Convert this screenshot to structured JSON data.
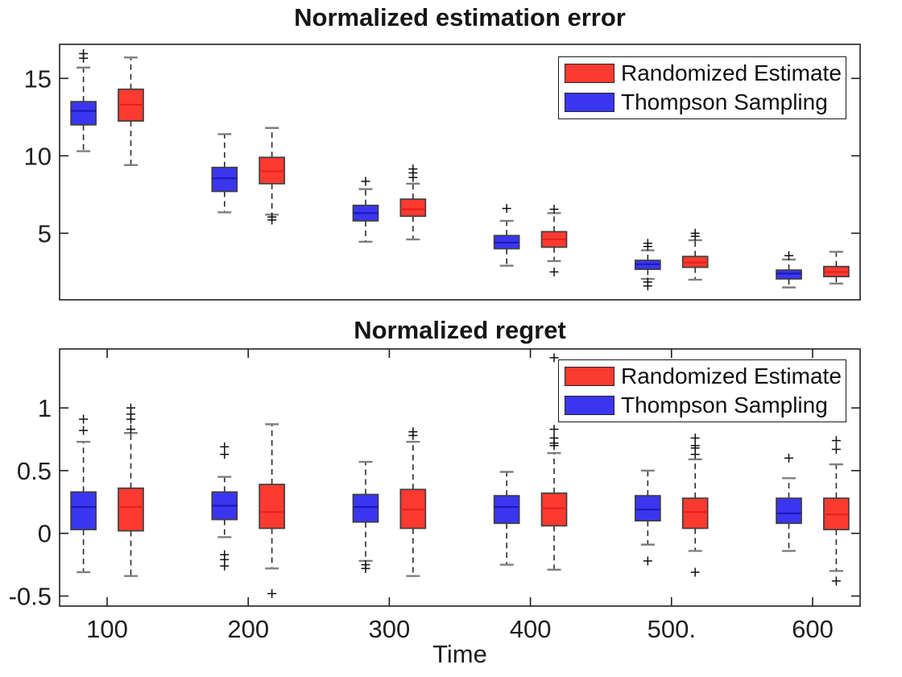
{
  "figure": {
    "background": "#ffffff",
    "xlabel": "Time"
  },
  "legend": {
    "entries": [
      {
        "label": "Randomized Estimate",
        "color_key": "red"
      },
      {
        "label": "Thompson Sampling",
        "color_key": "blue"
      }
    ],
    "position": "top-right"
  },
  "colors": {
    "red": "#fb3a30",
    "blue": "#3a36f0",
    "red_median": "#e62020",
    "blue_median": "#1b1bb4",
    "box_edge": "#3f3f3f",
    "whisker": "#2b2b2b",
    "whisker_cap": "#7f7f7f",
    "outlier": "#111111",
    "axis": "#1f1f1f"
  },
  "chart_data": [
    {
      "type": "boxplot",
      "title": "Normalized estimation error",
      "xlabel": "",
      "ylabel": "",
      "ylim": [
        0.7,
        17.2
      ],
      "yticks": [
        5,
        10,
        15
      ],
      "ytick_labels": [
        "5",
        "10",
        "15"
      ],
      "x_ticks": [
        100,
        200,
        300,
        400,
        500,
        600
      ],
      "x_tick_labels": null,
      "grid": false,
      "legend_position": "top-right",
      "series": [
        {
          "name": "Thompson Sampling",
          "color_key": "blue",
          "offset": -16.8,
          "boxes": [
            {
              "x": 100,
              "whislo": 10.3,
              "q1": 12.0,
              "med": 12.9,
              "q3": 13.5,
              "whishi": 15.7,
              "fliers": [
                16.3,
                16.6
              ]
            },
            {
              "x": 200,
              "whislo": 6.35,
              "q1": 7.7,
              "med": 8.55,
              "q3": 9.25,
              "whishi": 11.4,
              "fliers": []
            },
            {
              "x": 300,
              "whislo": 4.45,
              "q1": 5.8,
              "med": 6.3,
              "q3": 6.8,
              "whishi": 7.85,
              "fliers": [
                8.35
              ]
            },
            {
              "x": 400,
              "whislo": 2.9,
              "q1": 4.0,
              "med": 4.4,
              "q3": 4.85,
              "whishi": 5.8,
              "fliers": [
                6.6
              ]
            },
            {
              "x": 500,
              "whislo": 2.05,
              "q1": 2.67,
              "med": 3.0,
              "q3": 3.25,
              "whishi": 3.9,
              "fliers": [
                4.15,
                4.35,
                1.85,
                1.6
              ]
            },
            {
              "x": 600,
              "whislo": 1.5,
              "q1": 2.05,
              "med": 2.4,
              "q3": 2.62,
              "whishi": 3.3,
              "fliers": [
                3.55
              ]
            }
          ]
        },
        {
          "name": "Randomized Estimate",
          "color_key": "red",
          "offset": 16.8,
          "boxes": [
            {
              "x": 100,
              "whislo": 9.4,
              "q1": 12.25,
              "med": 13.3,
              "q3": 14.3,
              "whishi": 16.35,
              "fliers": []
            },
            {
              "x": 200,
              "whislo": 6.2,
              "q1": 8.2,
              "med": 9.0,
              "q3": 9.9,
              "whishi": 11.8,
              "fliers": [
                6.05,
                5.85
              ]
            },
            {
              "x": 300,
              "whislo": 4.6,
              "q1": 6.1,
              "med": 6.55,
              "q3": 7.2,
              "whishi": 8.2,
              "fliers": [
                8.6,
                8.9,
                9.15
              ]
            },
            {
              "x": 400,
              "whislo": 3.2,
              "q1": 4.1,
              "med": 4.6,
              "q3": 5.1,
              "whishi": 6.3,
              "fliers": [
                6.55,
                2.5
              ]
            },
            {
              "x": 500,
              "whislo": 2.0,
              "q1": 2.8,
              "med": 3.1,
              "q3": 3.5,
              "whishi": 4.55,
              "fliers": [
                4.8,
                5.0
              ]
            },
            {
              "x": 600,
              "whislo": 1.75,
              "q1": 2.2,
              "med": 2.5,
              "q3": 2.85,
              "whishi": 3.8,
              "fliers": []
            }
          ]
        }
      ]
    },
    {
      "type": "boxplot",
      "title": "Normalized regret",
      "xlabel": "Time",
      "ylabel": "",
      "ylim": [
        -0.58,
        1.47
      ],
      "yticks": [
        -0.5,
        0,
        0.5,
        1
      ],
      "ytick_labels": [
        "-0.5",
        "0",
        "0.5",
        "1"
      ],
      "x_ticks": [
        100,
        200,
        300,
        400,
        500,
        600
      ],
      "x_tick_labels": [
        "100",
        "200",
        "300",
        "400",
        "500.",
        "600"
      ],
      "grid": false,
      "legend_position": "top-right",
      "series": [
        {
          "name": "Thompson Sampling",
          "color_key": "blue",
          "offset": -16.8,
          "boxes": [
            {
              "x": 100,
              "whislo": -0.31,
              "q1": 0.03,
              "med": 0.21,
              "q3": 0.33,
              "whishi": 0.73,
              "fliers": [
                0.82,
                0.91
              ]
            },
            {
              "x": 200,
              "whislo": -0.03,
              "q1": 0.11,
              "med": 0.22,
              "q3": 0.33,
              "whishi": 0.45,
              "fliers": [
                0.63,
                0.69,
                -0.17,
                -0.21,
                -0.26
              ]
            },
            {
              "x": 300,
              "whislo": -0.22,
              "q1": 0.09,
              "med": 0.21,
              "q3": 0.31,
              "whishi": 0.57,
              "fliers": [
                -0.25,
                -0.28
              ]
            },
            {
              "x": 400,
              "whislo": -0.25,
              "q1": 0.08,
              "med": 0.21,
              "q3": 0.3,
              "whishi": 0.49,
              "fliers": []
            },
            {
              "x": 500,
              "whislo": -0.09,
              "q1": 0.1,
              "med": 0.19,
              "q3": 0.3,
              "whishi": 0.5,
              "fliers": [
                -0.22
              ]
            },
            {
              "x": 600,
              "whislo": -0.14,
              "q1": 0.08,
              "med": 0.16,
              "q3": 0.28,
              "whishi": 0.44,
              "fliers": [
                0.6
              ]
            }
          ]
        },
        {
          "name": "Randomized Estimate",
          "color_key": "red",
          "offset": 16.8,
          "boxes": [
            {
              "x": 100,
              "whislo": -0.34,
              "q1": 0.02,
              "med": 0.21,
              "q3": 0.36,
              "whishi": 0.8,
              "fliers": [
                0.83,
                0.91,
                0.95,
                1.0
              ]
            },
            {
              "x": 200,
              "whislo": -0.28,
              "q1": 0.04,
              "med": 0.17,
              "q3": 0.39,
              "whishi": 0.87,
              "fliers": [
                -0.48
              ]
            },
            {
              "x": 300,
              "whislo": -0.34,
              "q1": 0.04,
              "med": 0.19,
              "q3": 0.35,
              "whishi": 0.73,
              "fliers": [
                0.78,
                0.81
              ]
            },
            {
              "x": 400,
              "whislo": -0.29,
              "q1": 0.06,
              "med": 0.2,
              "q3": 0.32,
              "whishi": 0.64,
              "fliers": [
                0.7,
                0.72,
                0.76,
                0.83,
                1.4
              ]
            },
            {
              "x": 500,
              "whislo": -0.14,
              "q1": 0.04,
              "med": 0.17,
              "q3": 0.28,
              "whishi": 0.59,
              "fliers": [
                0.63,
                0.68,
                0.7,
                0.76,
                -0.31
              ]
            },
            {
              "x": 600,
              "whislo": -0.3,
              "q1": 0.03,
              "med": 0.15,
              "q3": 0.28,
              "whishi": 0.55,
              "fliers": [
                0.67,
                0.74,
                -0.38
              ]
            }
          ]
        }
      ]
    }
  ]
}
